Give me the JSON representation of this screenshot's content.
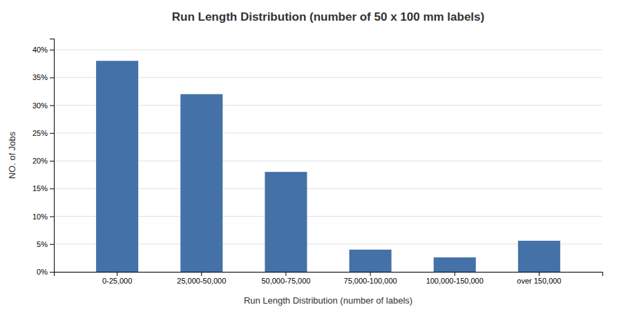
{
  "chart_data": {
    "type": "bar",
    "title": "Run Length Distribution (number of 50 x 100 mm labels)",
    "x_label": "Run Length Distribution (number of labels)",
    "y_label": "NO. of Jobs",
    "categories": [
      "0-25,000",
      "25,000-50,000",
      "50,000-75,000",
      "75,000-100,000",
      "100,000-150,000",
      "over 150,000"
    ],
    "values": [
      0.38,
      0.32,
      0.18,
      0.04,
      0.026,
      0.056
    ],
    "color": "#4472a8",
    "ylim": [
      0,
      0.42
    ],
    "yticks": [
      {
        "value": 0.0,
        "label": "0%"
      },
      {
        "value": 0.05,
        "label": "5%"
      },
      {
        "value": 0.1,
        "label": "10%"
      },
      {
        "value": 0.15,
        "label": "15%"
      },
      {
        "value": 0.2,
        "label": "20%"
      },
      {
        "value": 0.25,
        "label": "25%"
      },
      {
        "value": 0.3,
        "label": "30%"
      },
      {
        "value": 0.35,
        "label": "35%"
      },
      {
        "value": 0.4,
        "label": "40%"
      }
    ],
    "grid": true
  }
}
